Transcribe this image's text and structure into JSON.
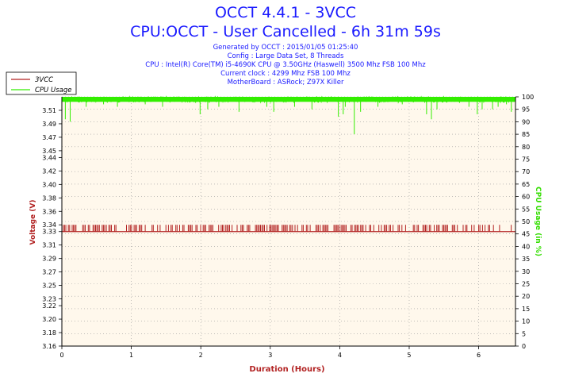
{
  "header": {
    "title_line1": "OCCT 4.4.1 - 3VCC",
    "title_line2": "CPU:OCCT - User Cancelled - 6h 31m 59s",
    "info": [
      "Generated by OCCT : 2015/01/05 01:25:40",
      "Config : Large Data Set, 8 Threads",
      "CPU : Intel(R) Core(TM) i5-4690K CPU @ 3.50GHz (Haswell) 3500 Mhz FSB 100 Mhz",
      "Current clock : 4299 Mhz FSB 100 Mhz",
      "MotherBoard : ASRock; Z97X Killer"
    ]
  },
  "colors": {
    "voltage": "#b22222",
    "cpu": "#33ee00",
    "plot_bg": "#fff8ec",
    "axis_label_left": "#b22222",
    "axis_label_right": "#33dd00",
    "title": "#1a1aff"
  },
  "chart_data": {
    "type": "line",
    "xlabel": "Duration (Hours)",
    "ylabel": "Voltage (V)",
    "y2label": "CPU Usage (in %)",
    "xlim": [
      0,
      6.53
    ],
    "ylim": [
      3.16,
      3.53
    ],
    "y2lim": [
      0,
      100
    ],
    "xticks": [
      "0",
      "1",
      "2",
      "3",
      "4",
      "5",
      "6"
    ],
    "yticks": [
      "3.16",
      "3.18",
      "3.20",
      "3.22",
      "3.23",
      "3.25",
      "3.27",
      "3.29",
      "3.31",
      "3.33",
      "3.34",
      "3.36",
      "3.38",
      "3.40",
      "3.42",
      "3.44",
      "3.45",
      "3.47",
      "3.49",
      "3.51"
    ],
    "ytick_values": [
      3.16,
      3.18,
      3.2,
      3.22,
      3.23,
      3.25,
      3.27,
      3.29,
      3.31,
      3.33,
      3.34,
      3.36,
      3.38,
      3.4,
      3.42,
      3.44,
      3.45,
      3.47,
      3.49,
      3.51
    ],
    "y2ticks": [
      "0",
      "5",
      "10",
      "15",
      "20",
      "25",
      "30",
      "35",
      "40",
      "45",
      "50",
      "55",
      "60",
      "65",
      "70",
      "75",
      "80",
      "85",
      "90",
      "95",
      "100"
    ],
    "legend_position": "top-left",
    "grid": true,
    "series": [
      {
        "name": "3VCC",
        "axis": "left",
        "baseline": 3.33,
        "high": 3.34,
        "high_intervals_hours": [
          [
            0.02,
            0.22
          ],
          [
            0.3,
            0.36
          ],
          [
            0.38,
            0.4
          ],
          [
            0.43,
            0.54
          ],
          [
            0.58,
            0.62
          ],
          [
            0.64,
            0.74
          ],
          [
            0.76,
            0.8
          ],
          [
            0.93,
            1.02
          ],
          [
            1.04,
            1.16
          ],
          [
            1.2,
            1.25
          ],
          [
            1.28,
            1.32
          ],
          [
            1.36,
            1.42
          ],
          [
            1.48,
            1.6
          ],
          [
            1.64,
            1.7
          ],
          [
            1.74,
            1.76
          ],
          [
            1.82,
            1.95
          ],
          [
            1.98,
            2.08
          ],
          [
            2.1,
            2.18
          ],
          [
            2.22,
            2.34
          ],
          [
            2.36,
            2.42
          ],
          [
            2.45,
            2.62
          ],
          [
            2.65,
            2.72
          ],
          [
            2.75,
            2.86
          ],
          [
            2.88,
            2.96
          ],
          [
            2.99,
            3.13
          ],
          [
            3.17,
            3.3
          ],
          [
            3.32,
            3.4
          ],
          [
            3.42,
            3.48
          ],
          [
            3.52,
            3.6
          ],
          [
            3.64,
            3.7
          ],
          [
            3.72,
            3.84
          ],
          [
            3.88,
            4.0
          ],
          [
            4.02,
            4.12
          ],
          [
            4.16,
            4.28
          ],
          [
            4.3,
            4.46
          ],
          [
            4.49,
            4.6
          ],
          [
            4.64,
            4.78
          ],
          [
            4.84,
            4.9
          ],
          [
            4.93,
            5.04
          ],
          [
            5.06,
            5.14
          ],
          [
            5.18,
            5.34
          ],
          [
            5.36,
            5.44
          ],
          [
            5.48,
            5.58
          ],
          [
            5.62,
            5.7
          ],
          [
            5.74,
            5.84
          ],
          [
            5.88,
            5.96
          ],
          [
            6.0,
            6.1
          ],
          [
            6.14,
            6.22
          ],
          [
            6.3,
            6.32
          ],
          [
            6.45,
            6.47
          ]
        ]
      },
      {
        "name": "CPU Usage",
        "axis": "right",
        "baseline": 100,
        "dips": [
          [
            0.05,
            91
          ],
          [
            0.12,
            90
          ],
          [
            0.35,
            96
          ],
          [
            0.6,
            97
          ],
          [
            0.8,
            96
          ],
          [
            1.2,
            97
          ],
          [
            1.45,
            96
          ],
          [
            1.99,
            93
          ],
          [
            2.1,
            95
          ],
          [
            2.26,
            96
          ],
          [
            2.55,
            94
          ],
          [
            2.95,
            96
          ],
          [
            3.05,
            94
          ],
          [
            3.35,
            96
          ],
          [
            3.6,
            95
          ],
          [
            3.98,
            92
          ],
          [
            4.05,
            93
          ],
          [
            4.08,
            96
          ],
          [
            4.21,
            85
          ],
          [
            4.3,
            94
          ],
          [
            4.55,
            96
          ],
          [
            4.9,
            97
          ],
          [
            5.25,
            93
          ],
          [
            5.32,
            91
          ],
          [
            5.4,
            95
          ],
          [
            5.86,
            96
          ],
          [
            5.98,
            93
          ],
          [
            6.05,
            95
          ],
          [
            6.2,
            95
          ],
          [
            6.28,
            96
          ],
          [
            6.4,
            97
          ],
          [
            6.47,
            94
          ]
        ]
      }
    ]
  }
}
